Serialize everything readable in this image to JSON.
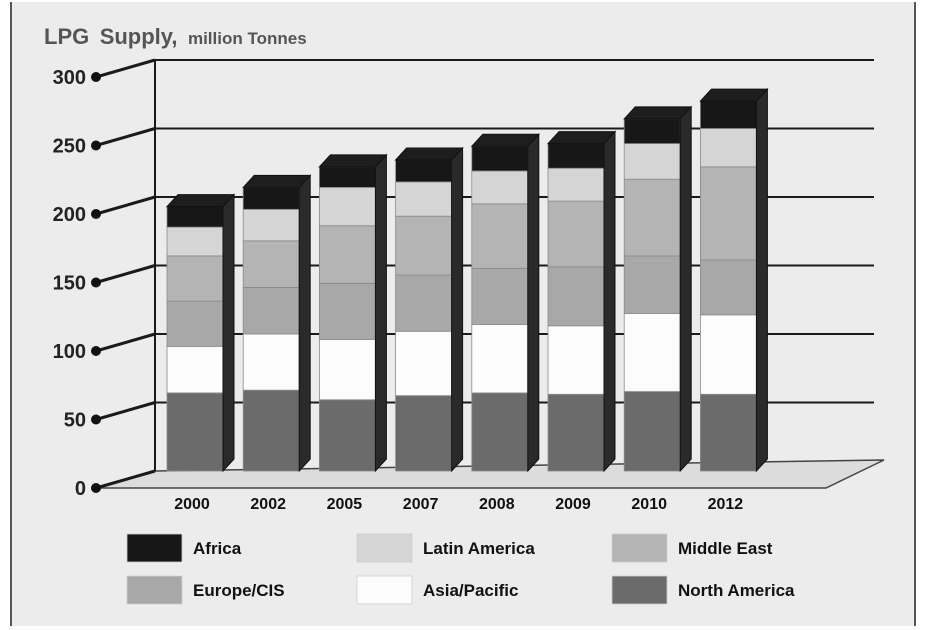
{
  "chart_data": {
    "type": "bar",
    "stacked": true,
    "three_d": true,
    "title": "LPG Supply,",
    "title_parts": {
      "main": "LPG",
      "supply": "Supply,",
      "unit": "million  Tonnes"
    },
    "xlabel": "",
    "ylabel": "",
    "ylim": [
      0,
      300
    ],
    "yticks": [
      "0",
      "50",
      "100",
      "150",
      "200",
      "250",
      "300"
    ],
    "categories": [
      "2000",
      "2002",
      "2005",
      "2007",
      "2008",
      "2009",
      "2010",
      "2012"
    ],
    "series": [
      {
        "name": "North America",
        "color": "#6b6b6b",
        "values": [
          57,
          59,
          52,
          55,
          57,
          56,
          58,
          56
        ]
      },
      {
        "name": "Asia/Pacific",
        "color": "#fcfcfc",
        "values": [
          34,
          41,
          44,
          47,
          50,
          50,
          57,
          58
        ]
      },
      {
        "name": "Europe/CIS",
        "color": "#a8a8a8",
        "values": [
          33,
          34,
          41,
          41,
          41,
          43,
          42,
          40
        ]
      },
      {
        "name": "Middle East",
        "color": "#b4b4b4",
        "values": [
          33,
          34,
          42,
          43,
          47,
          48,
          56,
          68
        ]
      },
      {
        "name": "Latin America",
        "color": "#d5d5d5",
        "values": [
          21,
          23,
          28,
          25,
          24,
          24,
          26,
          28
        ]
      },
      {
        "name": "Africa",
        "color": "#171717",
        "values": [
          15,
          16,
          15,
          16,
          18,
          18,
          18,
          20
        ]
      }
    ],
    "legend": {
      "placement": "bottom",
      "order": [
        "Africa",
        "Latin America",
        "Middle East",
        "Europe/CIS",
        "Asia/Pacific",
        "North America"
      ]
    },
    "grid": true,
    "colors": {
      "background": "#ececec",
      "grid": "#1a1a1a",
      "floor": "#dcdcdc"
    }
  }
}
